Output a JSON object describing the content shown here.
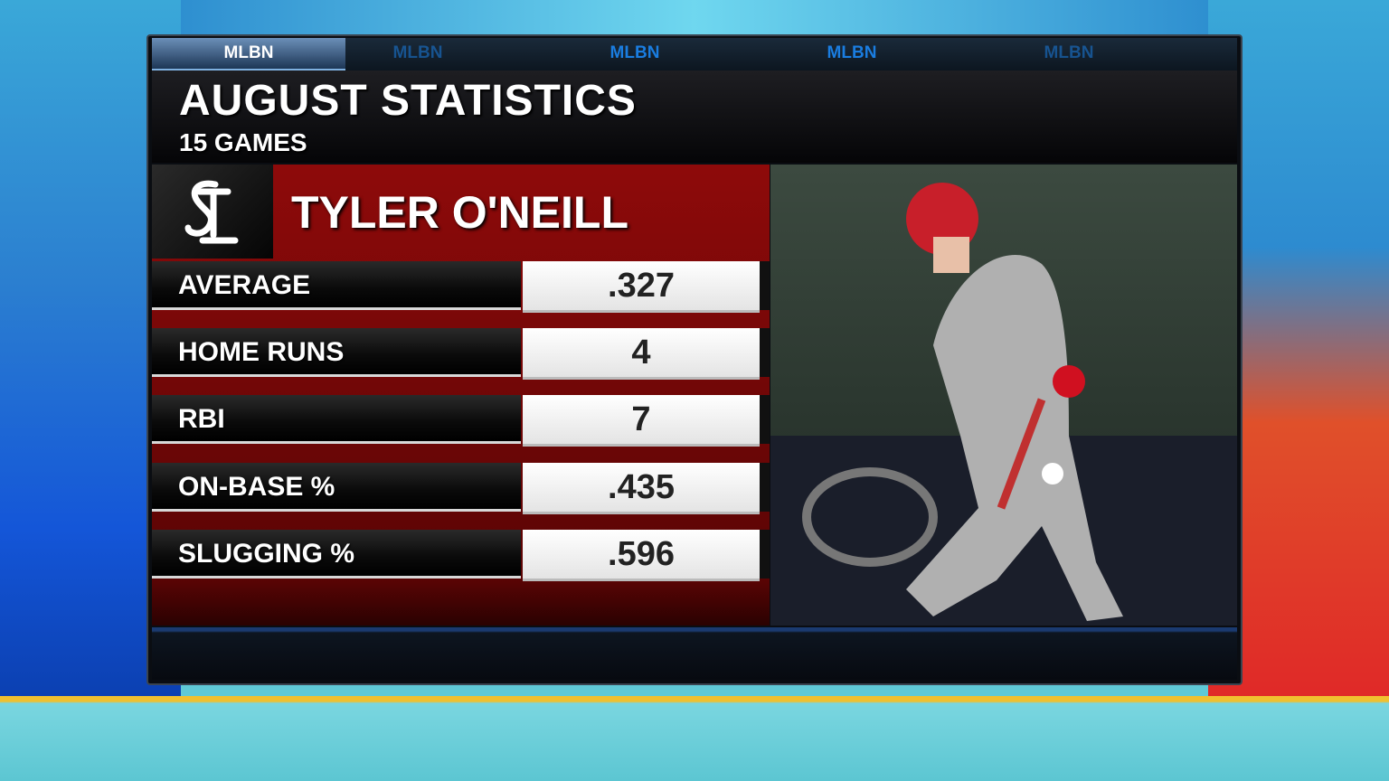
{
  "tabs": [
    "MLBN",
    "MLBN",
    "MLBN",
    "MLBN",
    "MLBN"
  ],
  "header": {
    "title": "AUGUST STATISTICS",
    "subtitle": "15 GAMES"
  },
  "player": "TYLER O'NEILL",
  "table": {
    "rows": [
      [
        "AVERAGE",
        ".327"
      ],
      [
        "HOME RUNS",
        "4"
      ],
      [
        "RBI",
        "7"
      ],
      [
        "ON-BASE %",
        ".435"
      ],
      [
        "SLUGGING %",
        ".596"
      ]
    ]
  }
}
